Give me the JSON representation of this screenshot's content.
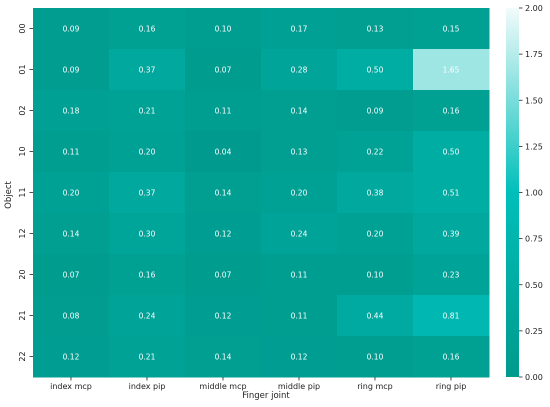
{
  "chart_data": {
    "type": "heatmap",
    "xlabel": "Finger joint",
    "ylabel": "Object",
    "x_categories": [
      "index mcp",
      "index pip",
      "middle mcp",
      "middle pip",
      "ring mcp",
      "ring pip"
    ],
    "y_categories": [
      "00",
      "01",
      "02",
      "10",
      "11",
      "12",
      "20",
      "21",
      "22"
    ],
    "values": [
      [
        0.09,
        0.16,
        0.1,
        0.17,
        0.13,
        0.15
      ],
      [
        0.09,
        0.37,
        0.07,
        0.28,
        0.5,
        1.65
      ],
      [
        0.18,
        0.21,
        0.11,
        0.14,
        0.09,
        0.16
      ],
      [
        0.11,
        0.2,
        0.04,
        0.13,
        0.22,
        0.5
      ],
      [
        0.2,
        0.37,
        0.14,
        0.2,
        0.38,
        0.51
      ],
      [
        0.14,
        0.3,
        0.12,
        0.24,
        0.2,
        0.39
      ],
      [
        0.07,
        0.16,
        0.07,
        0.11,
        0.1,
        0.23
      ],
      [
        0.08,
        0.24,
        0.12,
        0.11,
        0.44,
        0.81
      ],
      [
        0.12,
        0.21,
        0.14,
        0.12,
        0.1,
        0.16
      ]
    ],
    "value_format": "2 decimals",
    "colorbar": {
      "min": 0.0,
      "max": 2.0,
      "ticks": [
        "0.00",
        "0.25",
        "0.50",
        "0.75",
        "1.00",
        "1.25",
        "1.50",
        "1.75",
        "2.00"
      ],
      "colors": [
        "#009a8c",
        "#00bfba",
        "#f2fbfb"
      ]
    }
  }
}
